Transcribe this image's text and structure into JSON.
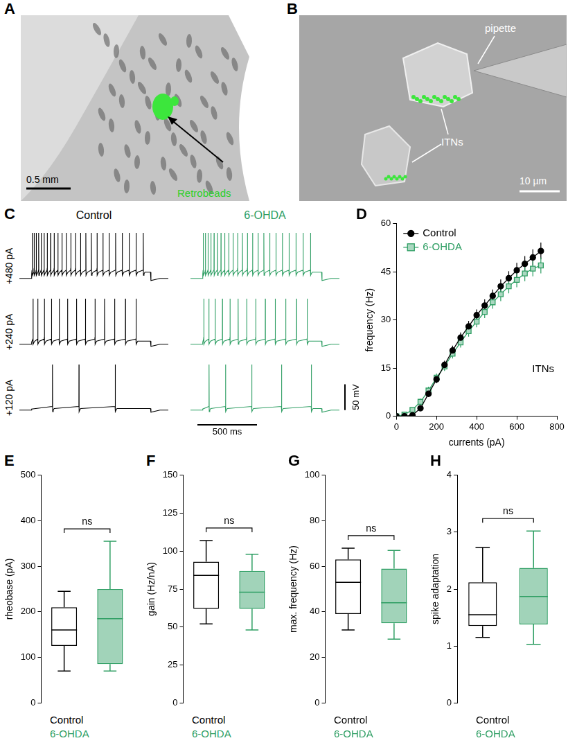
{
  "images": [
    {
      "label": "A",
      "annotations": [
        "Retrobeads"
      ],
      "scale_bar": "0.5 mm"
    },
    {
      "label": "B",
      "annotations": [
        "pipette",
        "ITNs"
      ],
      "scale_bar": "10 µm"
    }
  ],
  "chart_data": [
    {
      "type": "trace",
      "label": "C",
      "xlim": [
        -100,
        1150
      ],
      "ylim": [
        -15,
        100
      ],
      "step": [
        0,
        1000
      ],
      "tick_labels": false,
      "currents": [
        {
          "value": 480,
          "label": "+480 pA"
        },
        {
          "value": 240,
          "label": "+240 pA"
        },
        {
          "value": 120,
          "label": "+120 pA"
        }
      ],
      "scale_bars": {
        "y": {
          "value": 50,
          "label": "50 mV"
        },
        "x": {
          "value": 500,
          "label": "500 ms"
        }
      },
      "series": [
        {
          "name": "Control",
          "color": "#000000",
          "spike_times": [
            [
              8,
              24,
              42,
              62,
              84,
              108,
              134,
              162,
              192,
              224,
              258,
              294,
              332,
              372,
              414,
              458,
              504,
              552,
              602,
              654,
              708,
              764,
              822,
              880,
              940
            ],
            [
              15,
              55,
              110,
              170,
              235,
              305,
              380,
              455,
              535,
              615,
              700,
              790,
              880
            ],
            [
              178,
              400,
              705
            ]
          ]
        },
        {
          "name": "6-OHDA",
          "color": "#2e9e63",
          "spike_times": [
            [
              8,
              26,
              48,
              72,
              98,
              126,
              156,
              188,
              222,
              258,
              296,
              336,
              378,
              422,
              468,
              516,
              566,
              618,
              672,
              728,
              786,
              846,
              908
            ],
            [
              12,
              55,
              108,
              168,
              232,
              300,
              372,
              448,
              528,
              612,
              700,
              790,
              880
            ],
            [
              56,
              195,
              415,
              665,
              915
            ]
          ]
        }
      ]
    },
    {
      "type": "line",
      "label": "D",
      "x": [
        0,
        40,
        80,
        120,
        160,
        200,
        240,
        280,
        320,
        360,
        400,
        440,
        480,
        520,
        560,
        600,
        640,
        680,
        720
      ],
      "xlim": [
        0,
        800
      ],
      "xticks": [
        0,
        200,
        400,
        600,
        800
      ],
      "ylim": [
        0,
        60
      ],
      "yticks": [
        0,
        15,
        30,
        45,
        60
      ],
      "xlabel": "currents (pA)",
      "ylabel": "frequency (Hz)",
      "legend": "upper left",
      "grid": false,
      "annotations": [
        "ITNs"
      ],
      "series": [
        {
          "name": "Control",
          "color": "#000000",
          "marker": "circle",
          "values": [
            0,
            0,
            0.3,
            2.5,
            7,
            11.5,
            16,
            20.5,
            24.5,
            28,
            31.5,
            34.5,
            37.5,
            40.5,
            43,
            45.5,
            47.5,
            49.5,
            51.5
          ],
          "errors": [
            0,
            0,
            0.2,
            0.6,
            1,
            1.2,
            1.3,
            1.5,
            1.6,
            1.7,
            1.8,
            1.9,
            2,
            2.1,
            2.2,
            2.3,
            2.4,
            2.5,
            2.6
          ]
        },
        {
          "name": "6-OHDA",
          "color": "#2e9e63",
          "marker": "square",
          "values": [
            0,
            0.5,
            2,
            4.5,
            8,
            12,
            15.5,
            19.5,
            23,
            26.5,
            29.5,
            32.5,
            35.5,
            38,
            40.5,
            42.5,
            44.5,
            46,
            47
          ],
          "errors": [
            0,
            0.3,
            0.6,
            1,
            1.2,
            1.3,
            1.4,
            1.5,
            1.6,
            1.7,
            1.8,
            1.9,
            2,
            2.1,
            2.2,
            2.3,
            2.4,
            2.4,
            2.5
          ]
        }
      ]
    },
    {
      "type": "box",
      "label": "E",
      "ylabel": "rheobase (pA)",
      "categories": [
        "Control",
        "6-OHDA"
      ],
      "colors": [
        "#000000",
        "#2e9e63"
      ],
      "ylim": [
        0,
        500
      ],
      "yticks": [
        0,
        100,
        200,
        300,
        400,
        500
      ],
      "grid": false,
      "tick_labels": "y",
      "annotations": [
        "ns"
      ],
      "boxes": [
        {
          "min": 70,
          "q1": 125,
          "median": 160,
          "q3": 210,
          "max": 245
        },
        {
          "min": 70,
          "q1": 85,
          "median": 185,
          "q3": 250,
          "max": 355
        }
      ]
    },
    {
      "type": "box",
      "label": "F",
      "ylabel": "gain (Hz/nA)",
      "categories": [
        "Control",
        "6-OHDA"
      ],
      "colors": [
        "#000000",
        "#2e9e63"
      ],
      "ylim": [
        0,
        150
      ],
      "yticks": [
        0,
        25,
        50,
        75,
        100,
        125,
        150
      ],
      "grid": false,
      "tick_labels": "y",
      "annotations": [
        "ns"
      ],
      "boxes": [
        {
          "min": 52,
          "q1": 62,
          "median": 84,
          "q3": 93,
          "max": 107
        },
        {
          "min": 48,
          "q1": 62,
          "median": 73,
          "q3": 87,
          "max": 98
        }
      ]
    },
    {
      "type": "box",
      "label": "G",
      "ylabel": "max. frequency (Hz)",
      "categories": [
        "Control",
        "6-OHDA"
      ],
      "colors": [
        "#000000",
        "#2e9e63"
      ],
      "ylim": [
        0,
        100
      ],
      "yticks": [
        0,
        20,
        40,
        60,
        80,
        100
      ],
      "grid": false,
      "tick_labels": "y",
      "annotations": [
        "ns"
      ],
      "boxes": [
        {
          "min": 32,
          "q1": 39,
          "median": 53,
          "q3": 63,
          "max": 68
        },
        {
          "min": 28,
          "q1": 35,
          "median": 44,
          "q3": 59,
          "max": 67
        }
      ]
    },
    {
      "type": "box",
      "label": "H",
      "ylabel": "spike adaptation",
      "categories": [
        "Control",
        "6-OHDA"
      ],
      "colors": [
        "#000000",
        "#2e9e63"
      ],
      "ylim": [
        0,
        4
      ],
      "yticks": [
        0,
        1,
        2,
        3,
        4
      ],
      "grid": false,
      "tick_labels": "y",
      "annotations": [
        "ns"
      ],
      "boxes": [
        {
          "min": 1.15,
          "q1": 1.35,
          "median": 1.55,
          "q3": 2.12,
          "max": 2.73
        },
        {
          "min": 1.03,
          "q1": 1.38,
          "median": 1.87,
          "q3": 2.37,
          "max": 3.02
        }
      ]
    }
  ]
}
